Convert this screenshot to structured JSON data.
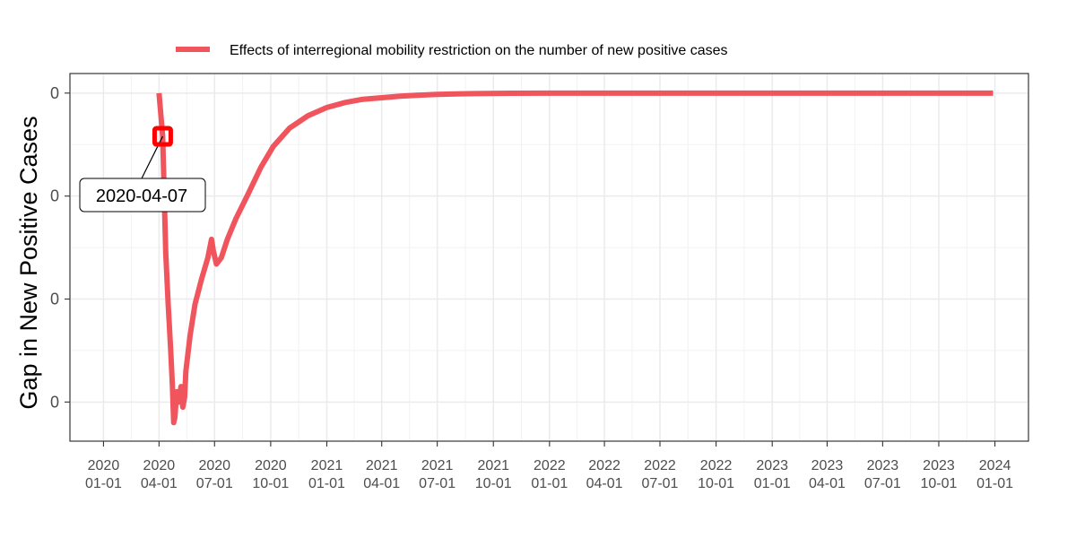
{
  "chart_data": {
    "type": "line",
    "title": "",
    "xlabel": "",
    "ylabel": "Gap in New Positive Cases",
    "legend": {
      "position": "top",
      "entries": [
        "Effects of interregional mobility restriction on the number of new positive cases"
      ]
    },
    "grid": true,
    "y_tick_labels": [
      "0",
      "0",
      "0",
      "0"
    ],
    "x_tick_labels": [
      {
        "year": "2020",
        "md": "01-01"
      },
      {
        "year": "2020",
        "md": "04-01"
      },
      {
        "year": "2020",
        "md": "07-01"
      },
      {
        "year": "2020",
        "md": "10-01"
      },
      {
        "year": "2021",
        "md": "01-01"
      },
      {
        "year": "2021",
        "md": "04-01"
      },
      {
        "year": "2021",
        "md": "07-01"
      },
      {
        "year": "2021",
        "md": "10-01"
      },
      {
        "year": "2022",
        "md": "01-01"
      },
      {
        "year": "2022",
        "md": "04-01"
      },
      {
        "year": "2022",
        "md": "07-01"
      },
      {
        "year": "2022",
        "md": "10-01"
      },
      {
        "year": "2023",
        "md": "01-01"
      },
      {
        "year": "2023",
        "md": "04-01"
      },
      {
        "year": "2023",
        "md": "07-01"
      },
      {
        "year": "2023",
        "md": "10-01"
      },
      {
        "year": "2024",
        "md": "01-01"
      }
    ],
    "xlim": [
      "2019-11-07",
      "2024-02-25"
    ],
    "ylim": [
      -3.38,
      0.19
    ],
    "series": [
      {
        "name": "Effects of interregional mobility restriction on the number of new positive cases",
        "color": "#f0545c",
        "points": [
          [
            "2020-04-01",
            0
          ],
          [
            "2020-04-07",
            -0.42
          ],
          [
            "2020-04-12",
            -1.55
          ],
          [
            "2020-04-16",
            -2.05
          ],
          [
            "2020-04-20",
            -2.48
          ],
          [
            "2020-04-23",
            -2.85
          ],
          [
            "2020-04-25",
            -3.2
          ],
          [
            "2020-04-27",
            -3.15
          ],
          [
            "2020-04-30",
            -2.9
          ],
          [
            "2020-05-03",
            -3.0
          ],
          [
            "2020-05-07",
            -2.85
          ],
          [
            "2020-05-10",
            -3.05
          ],
          [
            "2020-05-13",
            -2.95
          ],
          [
            "2020-05-15",
            -2.7
          ],
          [
            "2020-05-22",
            -2.35
          ],
          [
            "2020-05-30",
            -2.05
          ],
          [
            "2020-06-10",
            -1.8
          ],
          [
            "2020-06-20",
            -1.6
          ],
          [
            "2020-06-26",
            -1.42
          ],
          [
            "2020-06-29",
            -1.53
          ],
          [
            "2020-07-04",
            -1.66
          ],
          [
            "2020-07-12",
            -1.6
          ],
          [
            "2020-07-22",
            -1.42
          ],
          [
            "2020-08-05",
            -1.22
          ],
          [
            "2020-08-25",
            -0.98
          ],
          [
            "2020-09-15",
            -0.72
          ],
          [
            "2020-10-05",
            -0.52
          ],
          [
            "2020-11-01",
            -0.34
          ],
          [
            "2020-12-01",
            -0.22
          ],
          [
            "2021-01-01",
            -0.14
          ],
          [
            "2021-02-01",
            -0.09
          ],
          [
            "2021-03-01",
            -0.06
          ],
          [
            "2021-04-01",
            -0.045
          ],
          [
            "2021-05-01",
            -0.03
          ],
          [
            "2021-06-01",
            -0.02
          ],
          [
            "2021-07-01",
            -0.012
          ],
          [
            "2021-09-01",
            -0.005
          ],
          [
            "2021-11-01",
            -0.002
          ],
          [
            "2022-01-01",
            0
          ],
          [
            "2023-12-29",
            0
          ]
        ]
      }
    ],
    "annotations": [
      {
        "label": "2020-04-07",
        "x": "2020-04-07",
        "y": -0.42,
        "marker_color": "#ff0000"
      }
    ]
  }
}
